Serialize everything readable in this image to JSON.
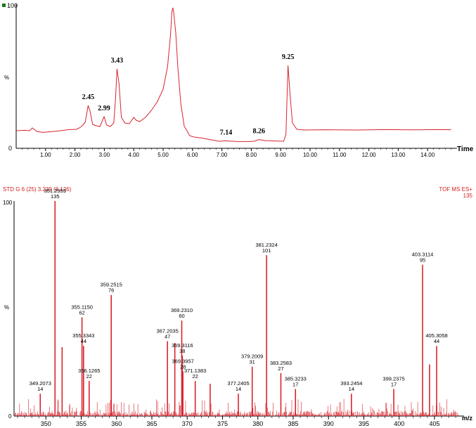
{
  "colors": {
    "trace": "#d8242c",
    "axis": "#000000",
    "header": "#d32020",
    "marker": "#1a7a1a"
  },
  "chart_data": [
    {
      "type": "line",
      "name": "chromatogram",
      "xlabel": "Time",
      "ylabel": "%",
      "xlim": [
        0,
        15
      ],
      "ylim": [
        0,
        100
      ],
      "x_ticks": [
        1,
        2,
        3,
        4,
        5,
        6,
        7,
        8,
        9,
        10,
        11,
        12,
        13,
        14
      ],
      "x_tick_labels": [
        "1.00",
        "2.00",
        "3.00",
        "4.00",
        "5.00",
        "6.00",
        "7.00",
        "8.00",
        "9.00",
        "10.00",
        "11.00",
        "12.00",
        "13.00",
        "14.00"
      ],
      "y_tick_labels": [
        "0",
        "%",
        "100"
      ],
      "grid": false,
      "trace": [
        [
          0.0,
          12.5
        ],
        [
          0.3,
          12.8
        ],
        [
          0.45,
          12.5
        ],
        [
          0.55,
          14.5
        ],
        [
          0.7,
          12.0
        ],
        [
          0.9,
          11.3
        ],
        [
          1.2,
          11.8
        ],
        [
          1.5,
          12.5
        ],
        [
          1.8,
          13.3
        ],
        [
          2.05,
          13.5
        ],
        [
          2.15,
          14.5
        ],
        [
          2.25,
          16.0
        ],
        [
          2.35,
          18.5
        ],
        [
          2.45,
          30.5
        ],
        [
          2.52,
          26.0
        ],
        [
          2.6,
          17.0
        ],
        [
          2.7,
          16.2
        ],
        [
          2.85,
          15.5
        ],
        [
          2.99,
          22.5
        ],
        [
          3.08,
          16.5
        ],
        [
          3.2,
          15.5
        ],
        [
          3.32,
          18.0
        ],
        [
          3.38,
          35.0
        ],
        [
          3.43,
          56.5
        ],
        [
          3.5,
          46.0
        ],
        [
          3.58,
          22.0
        ],
        [
          3.7,
          18.0
        ],
        [
          3.85,
          17.5
        ],
        [
          4.0,
          22.0
        ],
        [
          4.08,
          20.0
        ],
        [
          4.2,
          19.0
        ],
        [
          4.4,
          22.0
        ],
        [
          4.6,
          27.0
        ],
        [
          4.8,
          33.0
        ],
        [
          5.0,
          42.0
        ],
        [
          5.15,
          58.0
        ],
        [
          5.25,
          80.0
        ],
        [
          5.3,
          97.0
        ],
        [
          5.33,
          100.0
        ],
        [
          5.36,
          97.0
        ],
        [
          5.43,
          82.0
        ],
        [
          5.5,
          58.0
        ],
        [
          5.6,
          32.0
        ],
        [
          5.72,
          15.5
        ],
        [
          5.8,
          13.0
        ],
        [
          5.9,
          9.0
        ],
        [
          6.05,
          8.0
        ],
        [
          6.3,
          7.4
        ],
        [
          6.6,
          6.2
        ],
        [
          6.9,
          5.0
        ],
        [
          7.14,
          5.3
        ],
        [
          7.5,
          4.8
        ],
        [
          7.9,
          4.8
        ],
        [
          8.1,
          5.0
        ],
        [
          8.26,
          6.2
        ],
        [
          8.5,
          5.4
        ],
        [
          8.9,
          5.1
        ],
        [
          9.1,
          5.0
        ],
        [
          9.18,
          10.0
        ],
        [
          9.25,
          59.0
        ],
        [
          9.32,
          38.0
        ],
        [
          9.4,
          18.0
        ],
        [
          9.55,
          13.5
        ],
        [
          9.8,
          13.0
        ],
        [
          10.5,
          13.2
        ],
        [
          11.5,
          13.0
        ],
        [
          12.5,
          13.3
        ],
        [
          13.5,
          13.1
        ],
        [
          14.4,
          13.3
        ],
        [
          14.8,
          13.2
        ]
      ],
      "annotations": [
        {
          "x": 2.45,
          "y": 30.5,
          "label": "2.45"
        },
        {
          "x": 2.99,
          "y": 22.5,
          "label": "2.99"
        },
        {
          "x": 3.43,
          "y": 56.5,
          "label": "3.43"
        },
        {
          "x": 7.14,
          "y": 5.3,
          "label": "7.14"
        },
        {
          "x": 8.26,
          "y": 6.2,
          "label": "8.26"
        },
        {
          "x": 9.25,
          "y": 59.0,
          "label": "9.25"
        }
      ]
    },
    {
      "type": "bar",
      "name": "mass-spectrum",
      "title": "STD G 6 (25) 3.239 (8.126)",
      "title_right": "TOF MS ES+",
      "title_right_value": "135",
      "xlabel": "m/z",
      "ylabel": "%",
      "xlim": [
        345.5,
        408.5
      ],
      "ylim": [
        0,
        100
      ],
      "x_ticks": [
        350,
        355,
        360,
        365,
        370,
        375,
        380,
        385,
        390,
        395,
        400,
        405
      ],
      "x_tick_labels": [
        "350",
        "355",
        "360",
        "365",
        "370",
        "375",
        "380",
        "385",
        "390",
        "395",
        "400",
        "405"
      ],
      "y_tick_labels": [
        "0",
        "%",
        "100"
      ],
      "peaks": [
        {
          "mz": 349.2073,
          "intensity": 10.4,
          "label": "349.2073",
          "count": "14"
        },
        {
          "mz": 351.2959,
          "intensity": 100.0,
          "label": "351.2959",
          "count": "135"
        },
        {
          "mz": 352.3,
          "intensity": 32.0
        },
        {
          "mz": 355.115,
          "intensity": 45.9,
          "label": "355.1150",
          "count": "62"
        },
        {
          "mz": 355.3343,
          "intensity": 32.6,
          "label": "355.3343",
          "count": "44"
        },
        {
          "mz": 356.1265,
          "intensity": 16.3,
          "label": "356.1265",
          "count": "22"
        },
        {
          "mz": 359.2515,
          "intensity": 56.3,
          "label": "359.2515",
          "count": "76"
        },
        {
          "mz": 367.2035,
          "intensity": 34.8,
          "label": "367.2035",
          "count": "47"
        },
        {
          "mz": 368.25,
          "intensity": 34.0
        },
        {
          "mz": 369.231,
          "intensity": 44.4,
          "label": "369.2310",
          "count": "60"
        },
        {
          "mz": 369.3116,
          "intensity": 28.1,
          "label": "369.3116",
          "count": "38"
        },
        {
          "mz": 369.3957,
          "intensity": 20.7,
          "label": "369.3957",
          "count": "28"
        },
        {
          "mz": 371.1383,
          "intensity": 16.3,
          "label": "371.1383",
          "count": "22"
        },
        {
          "mz": 373.25,
          "intensity": 15.0
        },
        {
          "mz": 377.2405,
          "intensity": 10.4,
          "label": "377.2405",
          "count": "14"
        },
        {
          "mz": 379.2009,
          "intensity": 23.0,
          "label": "379.2009",
          "count": "31"
        },
        {
          "mz": 381.2324,
          "intensity": 74.8,
          "label": "381.2324",
          "count": "101"
        },
        {
          "mz": 383.2583,
          "intensity": 20.0,
          "label": "383.2583",
          "count": "27"
        },
        {
          "mz": 385.3233,
          "intensity": 12.6,
          "label": "385.3233",
          "count": "17"
        },
        {
          "mz": 393.2454,
          "intensity": 10.4,
          "label": "393.2454",
          "count": "14"
        },
        {
          "mz": 399.2375,
          "intensity": 12.6,
          "label": "399.2375",
          "count": "17"
        },
        {
          "mz": 403.3114,
          "intensity": 70.4,
          "label": "403.3114",
          "count": "95"
        },
        {
          "mz": 404.3,
          "intensity": 24.0
        },
        {
          "mz": 405.3058,
          "intensity": 32.6,
          "label": "405.3058",
          "count": "44"
        }
      ]
    }
  ]
}
